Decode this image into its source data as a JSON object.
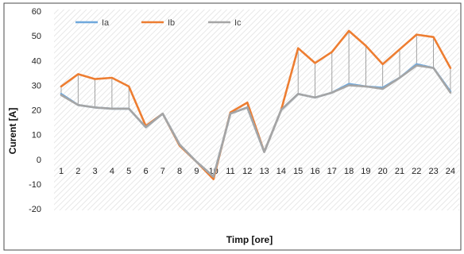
{
  "chart_data": {
    "type": "line",
    "xlabel": "Timp [ore]",
    "ylabel": "Curent [A]",
    "ylim": [
      -20,
      60
    ],
    "yticks": [
      -20,
      -10,
      0,
      10,
      20,
      30,
      40,
      50,
      60
    ],
    "categories": [
      "1",
      "2",
      "3",
      "4",
      "5",
      "6",
      "7",
      "8",
      "9",
      "10",
      "11",
      "12",
      "13",
      "14",
      "15",
      "16",
      "17",
      "18",
      "19",
      "20",
      "21",
      "22",
      "23",
      "24"
    ],
    "grid": "diagonal hatch background",
    "legend_position": "top-left",
    "drop_lines": true,
    "series": [
      {
        "name": "Ia",
        "color": "#6FA8DC",
        "values": [
          26.5,
          22,
          21,
          20.5,
          20.5,
          13,
          18.5,
          6,
          -1,
          -7,
          18.5,
          21,
          3,
          20,
          26.5,
          25,
          27,
          30.5,
          29.5,
          29,
          33,
          38.5,
          37,
          27.5
        ]
      },
      {
        "name": "Ib",
        "color": "#ED7D31",
        "values": [
          29.5,
          34.5,
          32.5,
          33,
          29.5,
          13.5,
          18.5,
          5.5,
          -1,
          -8,
          19,
          23,
          3,
          20,
          45,
          39,
          43.5,
          52,
          46,
          38.5,
          44.5,
          50.5,
          49.5,
          37
        ]
      },
      {
        "name": "Ic",
        "color": "#A5A5A5",
        "values": [
          26,
          22,
          21,
          20.5,
          20.5,
          13,
          18.5,
          6,
          -1,
          -7,
          18.5,
          21,
          3,
          20,
          26.5,
          25,
          27,
          30,
          29.5,
          28.5,
          33,
          38,
          37,
          27
        ]
      }
    ]
  }
}
